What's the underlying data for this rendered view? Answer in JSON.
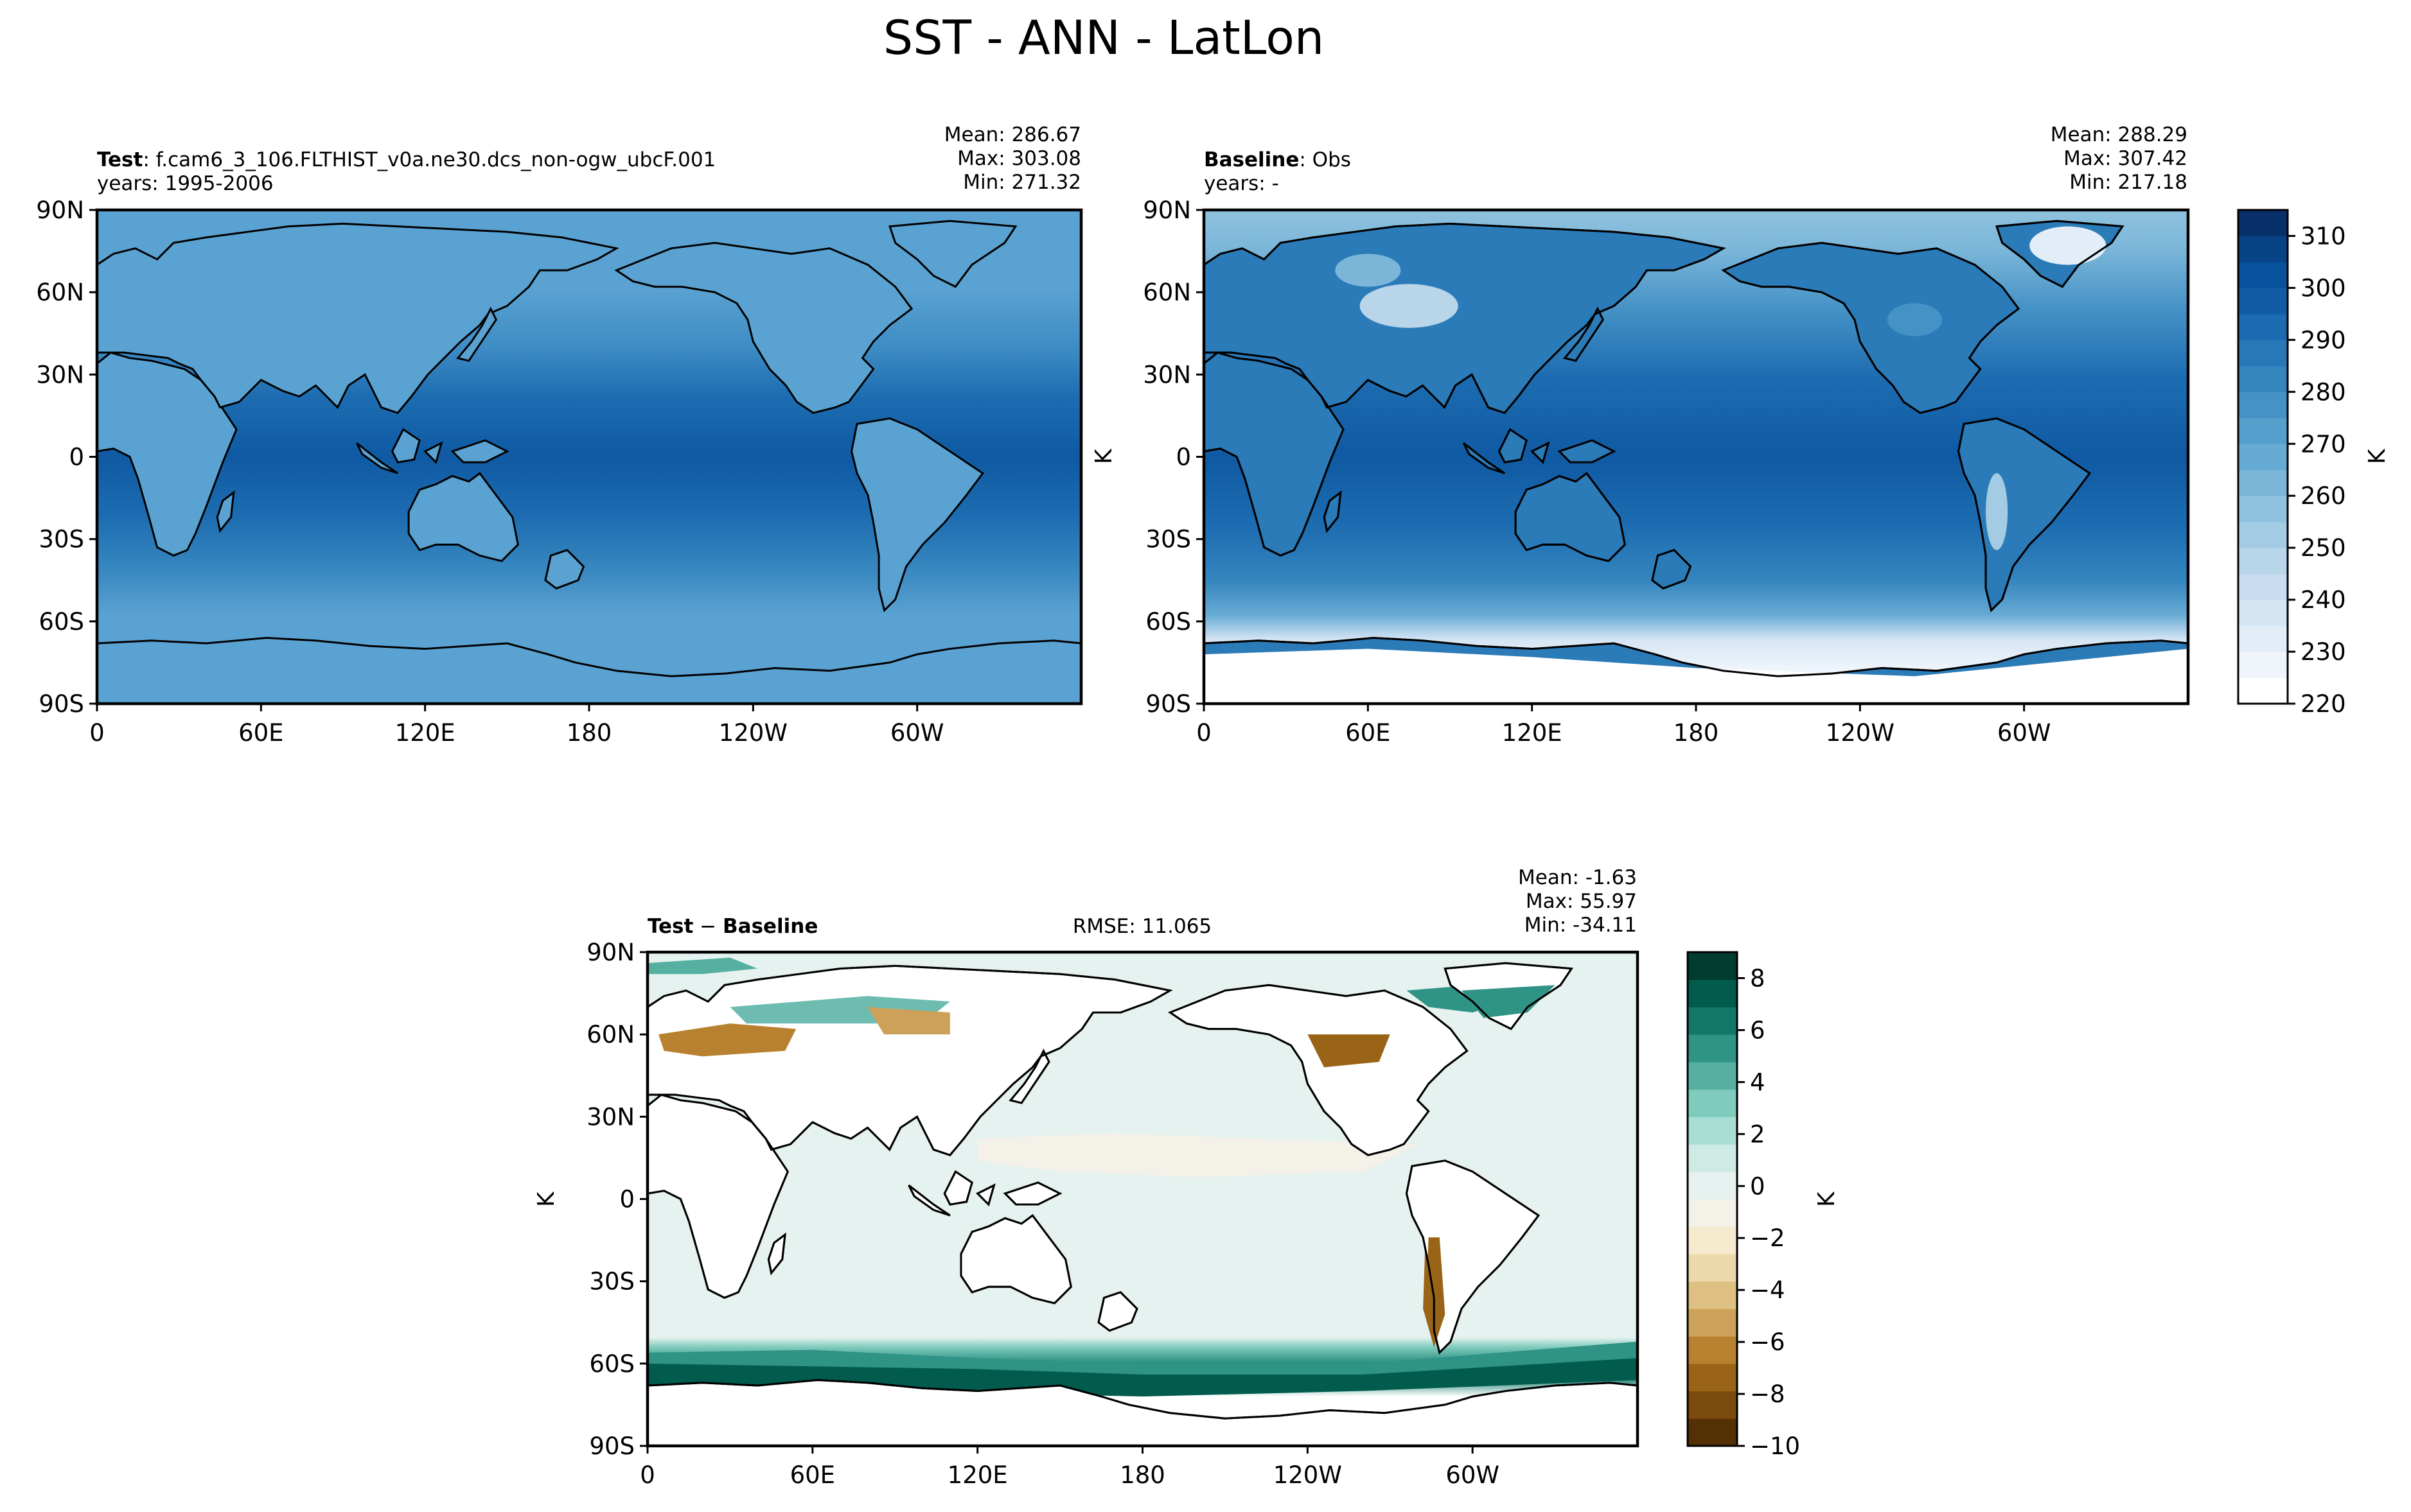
{
  "figure": {
    "title": "SST - ANN - LatLon"
  },
  "colors": {
    "land_test": "#5aa2d1",
    "coast": "#000000",
    "seq_scale": [
      "#ffffff",
      "#f0f5fc",
      "#e2edf8",
      "#d5e5f4",
      "#c8ddf0",
      "#b8d5ea",
      "#a3cce4",
      "#8fc2de",
      "#7bb6d9",
      "#66abd4",
      "#559fcd",
      "#4592c6",
      "#3585bf",
      "#2878b8",
      "#1c6aaf",
      "#115ca5",
      "#08519c",
      "#084387",
      "#08306b"
    ],
    "div_scale": [
      "#543005",
      "#7b4a0d",
      "#9a6418",
      "#b7812f",
      "#cda15a",
      "#dfc083",
      "#ecd8aa",
      "#f5eace",
      "#f3f1e8",
      "#e6f2ef",
      "#cdeae4",
      "#a8ded4",
      "#7fcbbd",
      "#55b0a2",
      "#2f9385",
      "#127769",
      "#015c4e",
      "#003c30"
    ]
  },
  "panels": {
    "test": {
      "label_bold": "Test",
      "label_rest": ": f.cam6_3_106.FLTHIST_v0a.ne30.dcs_non-ogw_ubcF.001",
      "years": "years: 1995-2006",
      "mean": "Mean: 286.67",
      "max": "Max: 303.08",
      "min": "Min: 271.32"
    },
    "baseline": {
      "label_bold": "Baseline",
      "label_rest": ": Obs",
      "years": "years: -",
      "mean": "Mean: 288.29",
      "max": "Max: 307.42",
      "min": "Min: 217.18",
      "ylabel": "K"
    },
    "diff": {
      "label_bold": "Test",
      "label_mid": " − ",
      "label_bold2": "Baseline",
      "rmse": "RMSE: 11.065",
      "mean": "Mean: -1.63",
      "max": "Max: 55.97",
      "min": "Min: -34.11",
      "ylabel": "K"
    }
  },
  "axes": {
    "lat_ticks": [
      "90N",
      "60N",
      "30N",
      "0",
      "30S",
      "60S",
      "90S"
    ],
    "lon_ticks": [
      "0",
      "60E",
      "120E",
      "180",
      "120W",
      "60W"
    ]
  },
  "colorbars": {
    "main": {
      "ticks": [
        "310",
        "300",
        "290",
        "280",
        "270",
        "260",
        "250",
        "240",
        "230",
        "220"
      ],
      "label": "K"
    },
    "diff": {
      "ticks": [
        "8",
        "6",
        "4",
        "2",
        "0",
        "−2",
        "−4",
        "−6",
        "−8",
        "−10"
      ],
      "label": "K"
    }
  },
  "chart_data": [
    {
      "type": "heatmap",
      "name": "Test",
      "title": "Test: f.cam6_3_106.FLTHIST_v0a.ne30.dcs_non-ogw_ubcF.001",
      "lat_ticks": [
        "90N",
        "60N",
        "30N",
        "0",
        "30S",
        "60S",
        "90S"
      ],
      "lon_ticks": [
        "0",
        "60E",
        "120E",
        "180",
        "120W",
        "60W"
      ],
      "xlim": [
        0,
        360
      ],
      "ylim": [
        -90,
        90
      ],
      "units": "K",
      "stats": {
        "mean": 286.67,
        "max": 303.08,
        "min": 271.32
      },
      "zonal_profile": {
        "lat": [
          90,
          60,
          30,
          0,
          -30,
          -60,
          -90
        ],
        "value": [
          272,
          276,
          292,
          301,
          293,
          274,
          271
        ]
      }
    },
    {
      "type": "heatmap",
      "name": "Baseline",
      "title": "Baseline: Obs",
      "lat_ticks": [
        "90N",
        "60N",
        "30N",
        "0",
        "30S",
        "60S",
        "90S"
      ],
      "lon_ticks": [
        "0",
        "60E",
        "120E",
        "180",
        "120W",
        "60W"
      ],
      "xlim": [
        0,
        360
      ],
      "ylim": [
        -90,
        90
      ],
      "units": "K",
      "stats": {
        "mean": 288.29,
        "max": 307.42,
        "min": 217.18
      },
      "colorbar": {
        "ticks": [
          220,
          230,
          240,
          250,
          260,
          270,
          280,
          290,
          300,
          310
        ],
        "range": [
          220,
          315
        ]
      },
      "zonal_profile": {
        "lat": [
          90,
          60,
          30,
          0,
          -30,
          -60,
          -90
        ],
        "value": [
          271,
          276,
          292,
          301,
          293,
          274,
          230
        ]
      }
    },
    {
      "type": "heatmap",
      "name": "Test - Baseline",
      "title": "Test − Baseline",
      "rmse": 11.065,
      "lat_ticks": [
        "90N",
        "60N",
        "30N",
        "0",
        "30S",
        "60S",
        "90S"
      ],
      "lon_ticks": [
        "0",
        "60E",
        "120E",
        "180",
        "120W",
        "60W"
      ],
      "xlim": [
        0,
        360
      ],
      "ylim": [
        -90,
        90
      ],
      "units": "K",
      "stats": {
        "mean": -1.63,
        "max": 55.97,
        "min": -34.11
      },
      "colorbar": {
        "ticks": [
          -10,
          -8,
          -6,
          -4,
          -2,
          0,
          2,
          4,
          6,
          8
        ],
        "range": [
          -10,
          9
        ]
      },
      "zonal_profile": {
        "lat": [
          90,
          60,
          30,
          0,
          -30,
          -60,
          -90
        ],
        "value": [
          3,
          2,
          -1,
          -0.5,
          -0.5,
          7,
          0
        ]
      }
    }
  ]
}
